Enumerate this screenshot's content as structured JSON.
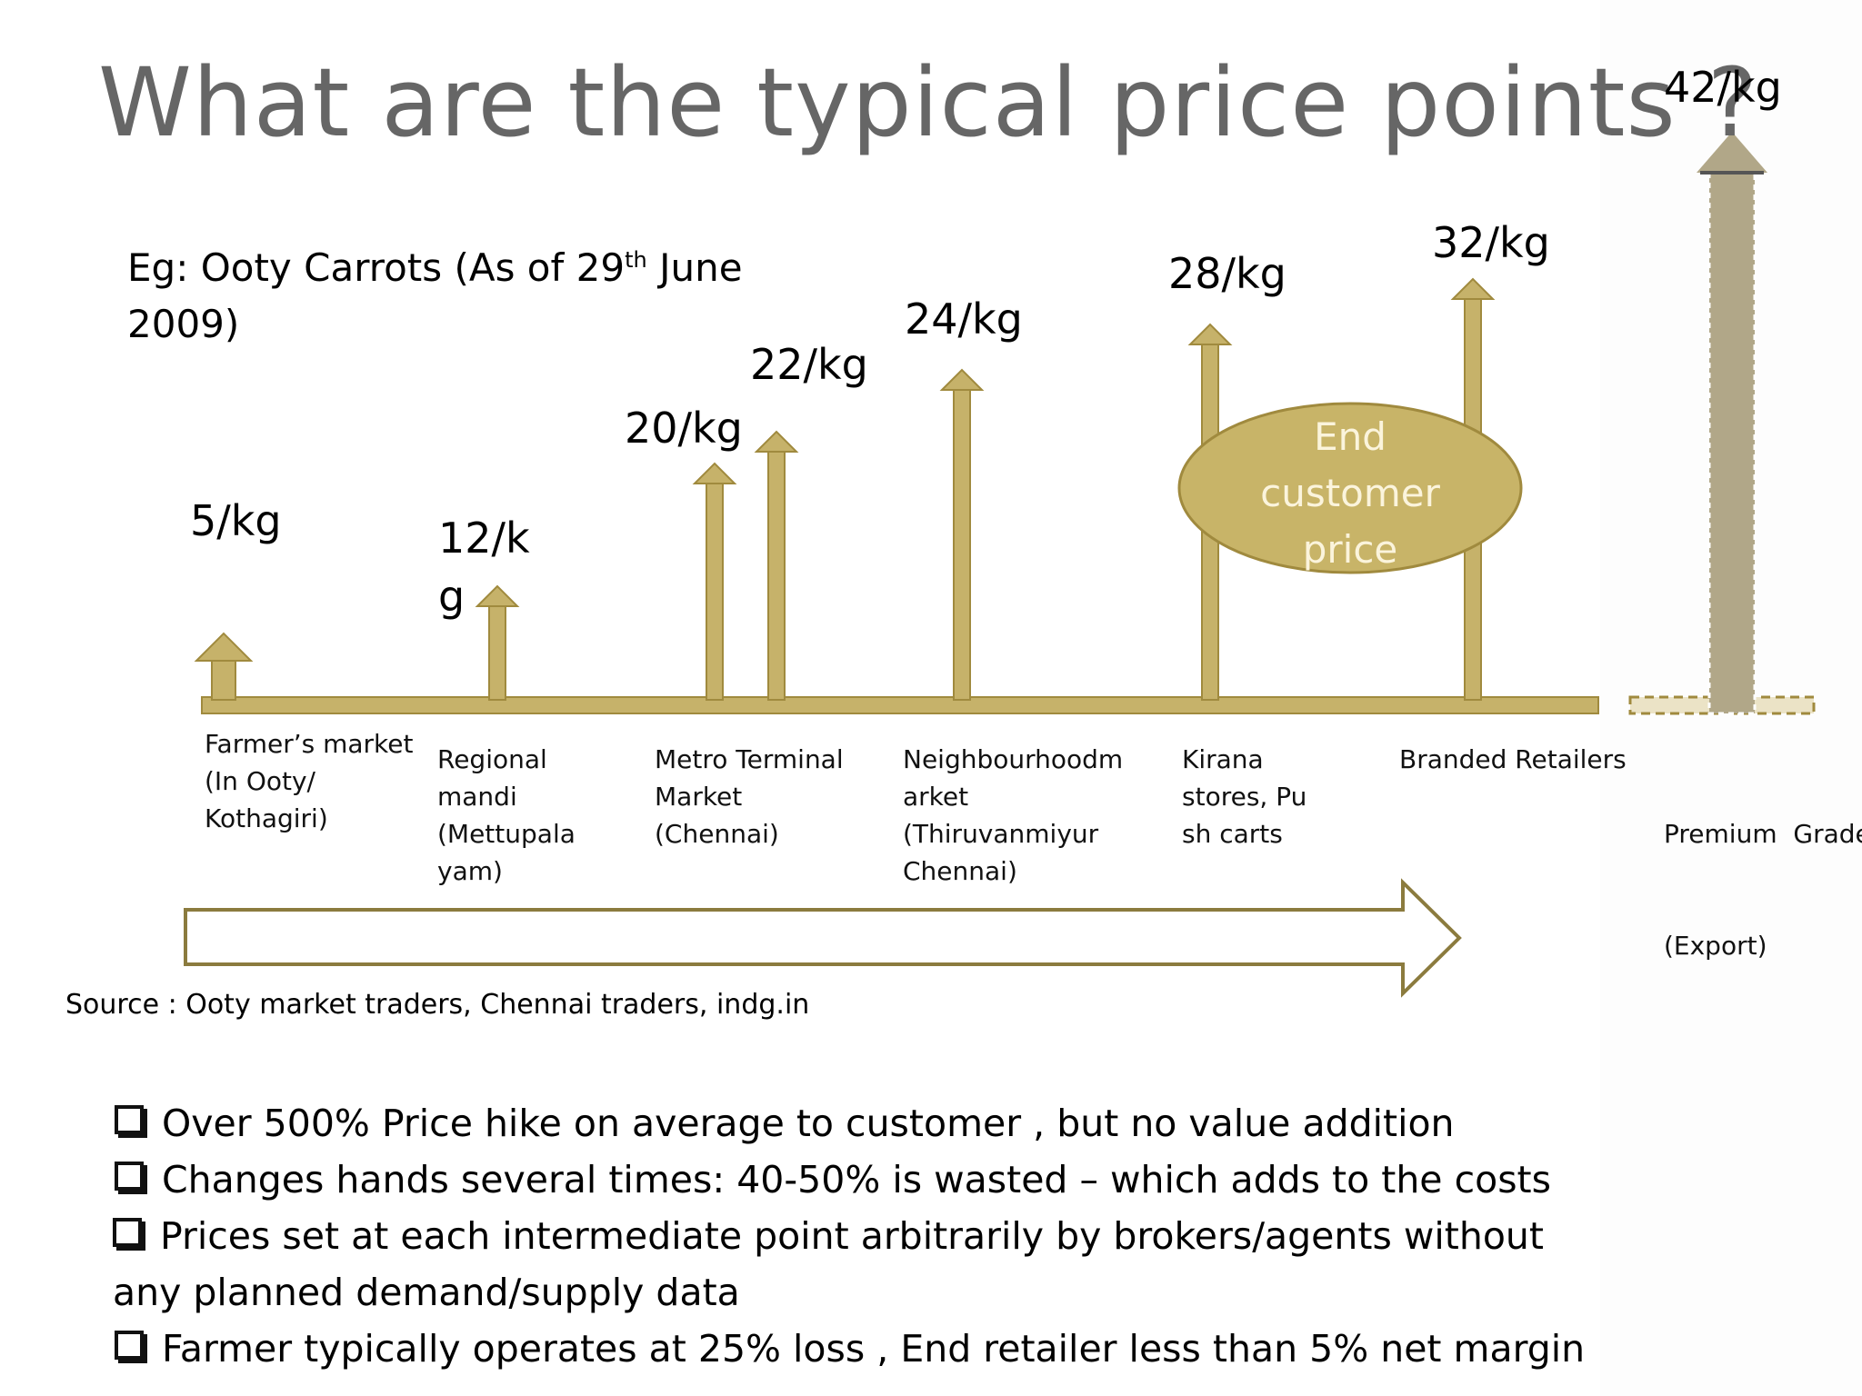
{
  "title": "What are the typical price points ?",
  "example_label": {
    "prefix": "Eg: Ooty Carrots (As of 29",
    "sup": "th",
    "suffix": " June 2009)"
  },
  "stages": [
    {
      "price": "5/kg",
      "label": [
        "Farmer’s market",
        "(In Ooty/",
        "Kothagiri)"
      ]
    },
    {
      "price_lines": [
        "12/k",
        "g"
      ],
      "label": [
        "Regional",
        "mandi",
        "(Mettupala",
        "yam)"
      ]
    },
    {
      "price": "20/kg",
      "label": [
        "Metro Terminal",
        "Market",
        "(Chennai)"
      ]
    },
    {
      "price": "22/kg"
    },
    {
      "price": "24/kg",
      "label": [
        "Neighbourhoodm",
        "arket",
        "(Thiruvanmiyur",
        "Chennai)"
      ]
    },
    {
      "price": "28/kg",
      "label": [
        "Kirana",
        "stores, Pu",
        "sh carts"
      ]
    },
    {
      "price": "32/kg",
      "label": [
        "Branded Retailers"
      ]
    },
    {
      "price": "42/kg",
      "label": [
        "Premium  Grade",
        "(Export)"
      ]
    }
  ],
  "ellipse_label": [
    "End",
    "customer",
    "price"
  ],
  "source": "Source : Ooty market traders, Chennai traders, indg.in",
  "bullets": [
    "Over 500% Price hike on average to customer , but no value addition",
    "Changes hands several times: 40-50% is wasted – which adds to the costs",
    "Prices set at each intermediate point arbitrarily by brokers/agents without any planned demand/supply data",
    "Farmer typically operates at 25% loss , End retailer less than 5% net margin"
  ],
  "colors": {
    "arrow_fill": "#c6b26a",
    "arrow_stroke": "#a08a3e",
    "ellipse_fill": "#c8b468",
    "premium_arrow": "#b1a788",
    "title": "#666666",
    "flow_arrow_stroke": "#8b7b3e"
  }
}
